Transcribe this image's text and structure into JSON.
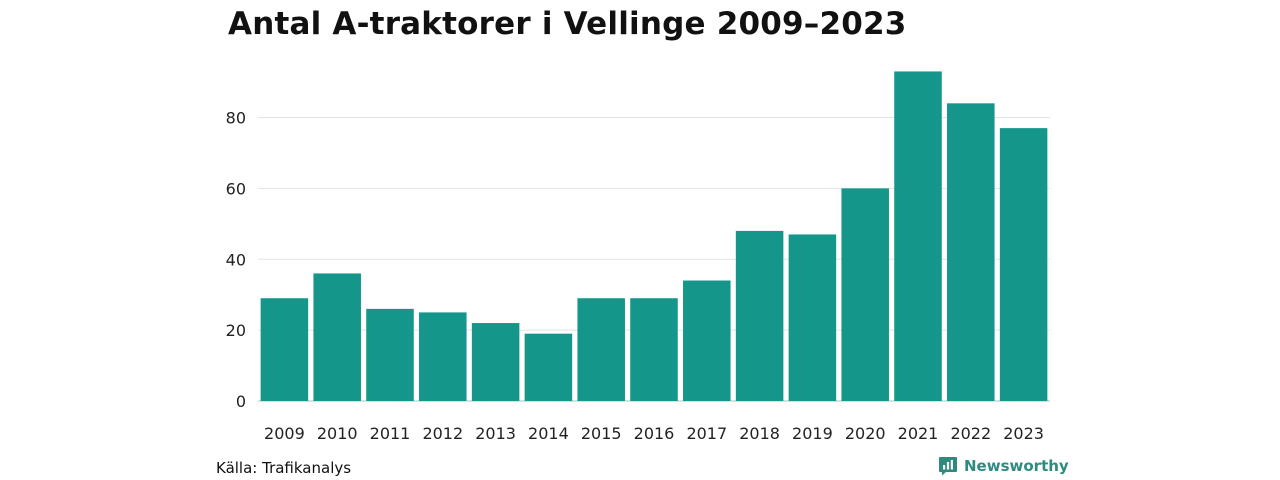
{
  "chart_data": {
    "type": "bar",
    "title": "Antal A-traktorer i Vellinge 2009–2023",
    "xlabel": "",
    "ylabel": "",
    "categories": [
      "2009",
      "2010",
      "2011",
      "2012",
      "2013",
      "2014",
      "2015",
      "2016",
      "2017",
      "2018",
      "2019",
      "2020",
      "2021",
      "2022",
      "2023"
    ],
    "values": [
      29,
      36,
      26,
      25,
      22,
      19,
      29,
      29,
      34,
      48,
      47,
      60,
      93,
      84,
      77
    ],
    "ylim": [
      0,
      95
    ],
    "yticks": [
      0,
      20,
      40,
      60,
      80
    ],
    "yticklabels": [
      "0",
      "20",
      "40",
      "60",
      "80"
    ],
    "grid": true,
    "bar_color": "#14968a"
  },
  "footer": {
    "source": "Källa: Trafikanalys",
    "brand": "Newsworthy",
    "brand_color": "#2f8a80",
    "brand_icon": "newsworthy-logo-icon"
  }
}
